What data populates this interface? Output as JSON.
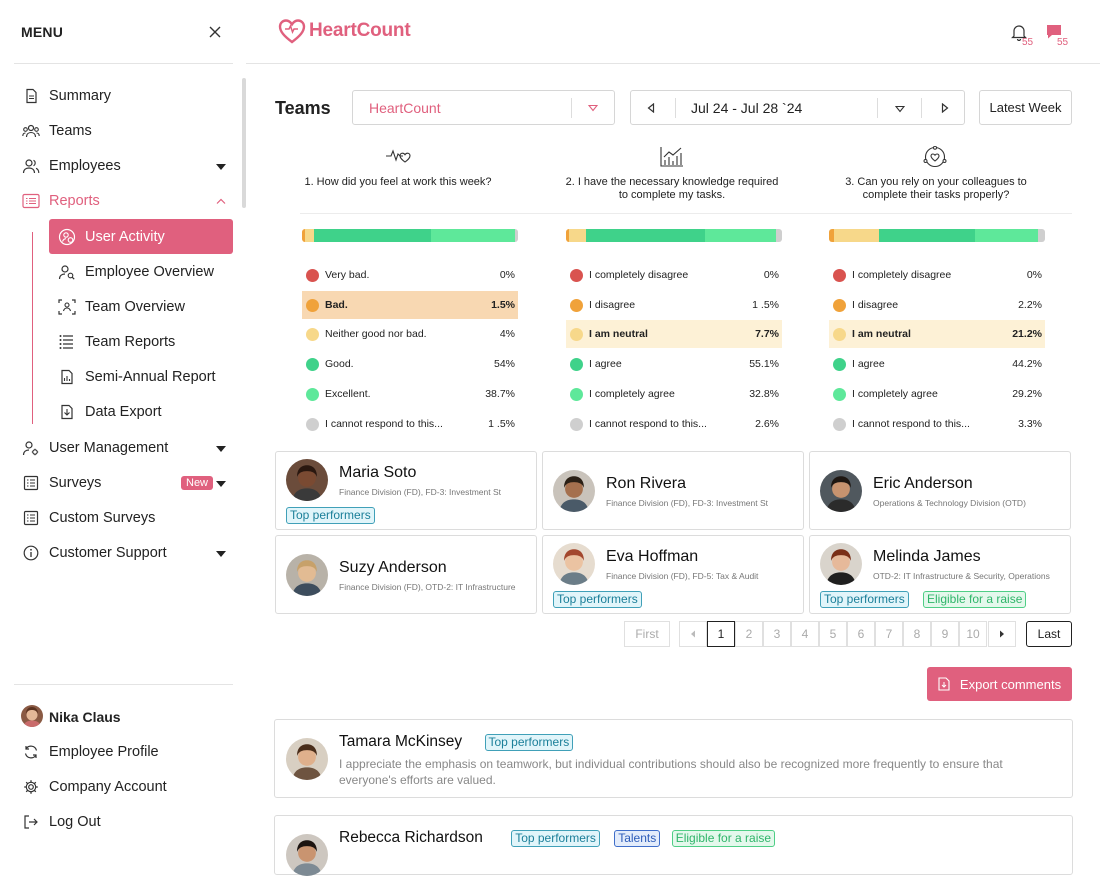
{
  "sidebar": {
    "menu_title": "MENU",
    "items": [
      {
        "label": "Summary"
      },
      {
        "label": "Teams"
      },
      {
        "label": "Employees"
      },
      {
        "label": "Reports"
      },
      {
        "label": "User Management"
      },
      {
        "label": "Surveys",
        "badge": "New"
      },
      {
        "label": "Custom Surveys"
      },
      {
        "label": "Customer Support"
      }
    ],
    "report_items": [
      {
        "label": "User Activity"
      },
      {
        "label": "Employee Overview"
      },
      {
        "label": "Team Overview"
      },
      {
        "label": "Team Reports"
      },
      {
        "label": "Semi-Annual Report"
      },
      {
        "label": "Data Export"
      }
    ],
    "user": {
      "name": "Nika Claus",
      "links": [
        "Employee Profile",
        "Company Account",
        "Log Out"
      ]
    }
  },
  "header": {
    "logo": "HeartCount",
    "notifications_count": "55",
    "messages_count": "55"
  },
  "filters": {
    "title": "Teams",
    "team_select": "HeartCount",
    "date_range": "Jul 24 - Jul 28 `24",
    "period_button": "Latest Week"
  },
  "questions": [
    {
      "line1": "1. How did you feel at work this week?",
      "line2": "",
      "icon": "heartbeat-icon",
      "bar": [
        1.5,
        4,
        54,
        38.7,
        1.5
      ],
      "answers": [
        {
          "label": "Very bad.",
          "pct": "0%",
          "color": "#d9534f"
        },
        {
          "label": "Bad.",
          "pct": "1.5%",
          "color": "#f0a23a"
        },
        {
          "label": "Neither good nor bad.",
          "pct": "4%",
          "color": "#f7d88a"
        },
        {
          "label": "Good.",
          "pct": "54%",
          "color": "#3fd28a"
        },
        {
          "label": "Excellent.",
          "pct": "38.7%",
          "color": "#5ee89a"
        },
        {
          "label": "I cannot respond to this...",
          "pct": "1 .5%",
          "color": "#cfcfcf"
        }
      ],
      "highlight": 1
    },
    {
      "line1": "2. I have the necessary knowledge required",
      "line2": "to complete my tasks.",
      "icon": "growth-chart-icon",
      "bar": [
        1.5,
        7.7,
        55.1,
        32.8,
        2.6
      ],
      "answers": [
        {
          "label": "I completely disagree",
          "pct": "0%",
          "color": "#d9534f"
        },
        {
          "label": "I disagree",
          "pct": "1 .5%",
          "color": "#f0a23a"
        },
        {
          "label": "I am neutral",
          "pct": "7.7%",
          "color": "#f7d88a"
        },
        {
          "label": "I agree",
          "pct": "55.1%",
          "color": "#3fd28a"
        },
        {
          "label": "I completely agree",
          "pct": "32.8%",
          "color": "#5ee89a"
        },
        {
          "label": "I cannot respond to this...",
          "pct": "2.6%",
          "color": "#cfcfcf"
        }
      ],
      "highlight": 2
    },
    {
      "line1": "3. Can you rely on your colleagues to",
      "line2": "complete their tasks properly?",
      "icon": "team-heart-icon",
      "bar": [
        2.2,
        21.2,
        44.2,
        29.2,
        3.3
      ],
      "answers": [
        {
          "label": "I completely disagree",
          "pct": "0%",
          "color": "#d9534f"
        },
        {
          "label": "I disagree",
          "pct": "2.2%",
          "color": "#f0a23a"
        },
        {
          "label": "I am neutral",
          "pct": "21.2%",
          "color": "#f7d88a"
        },
        {
          "label": "I agree",
          "pct": "44.2%",
          "color": "#3fd28a"
        },
        {
          "label": "I completely agree",
          "pct": "29.2%",
          "color": "#5ee89a"
        },
        {
          "label": "I cannot respond to this...",
          "pct": "3.3%",
          "color": "#cfcfcf"
        }
      ],
      "highlight": 2
    }
  ],
  "employees": [
    {
      "name": "Maria Soto",
      "dept": "Finance Division (FD), FD-3: Investment St",
      "tags": [
        "Top performers"
      ]
    },
    {
      "name": "Ron Rivera",
      "dept": "Finance Division (FD), FD-3: Investment St",
      "tags": []
    },
    {
      "name": "Eric Anderson",
      "dept": "Operations & Technology Division (OTD)",
      "tags": []
    },
    {
      "name": "Suzy Anderson",
      "dept": "Finance Division (FD), OTD-2: IT Infrastructure",
      "tags": []
    },
    {
      "name": "Eva Hoffman",
      "dept": "Finance Division (FD), FD-5: Tax & Audit",
      "tags": [
        "Top performers"
      ]
    },
    {
      "name": "Melinda James",
      "dept": "OTD-2: IT Infrastructure & Security, Operations",
      "tags": [
        "Top performers",
        "Eligible for a raise"
      ]
    }
  ],
  "pagination": {
    "first": "First",
    "pages": [
      "1",
      "2",
      "3",
      "4",
      "5",
      "6",
      "7",
      "8",
      "9",
      "10"
    ],
    "current": "1",
    "last": "Last"
  },
  "export_label": "Export comments",
  "comments": [
    {
      "name": "Tamara McKinsey",
      "tags": [
        "Top performers"
      ],
      "text_line1": "I appreciate the emphasis on teamwork, but individual contributions should also be recognized more frequently to ensure that",
      "text_line2": "everyone's efforts are valued."
    },
    {
      "name": "Rebecca Richardson",
      "tags": [
        "Top performers",
        "Talents",
        "Eligible for a raise"
      ]
    }
  ],
  "colors": {
    "accent": "#e0607e",
    "very_bad": "#d9534f",
    "bad": "#f0a23a",
    "neutral": "#f7d88a",
    "good": "#3fd28a",
    "excellent": "#5ee89a",
    "no_answer": "#cfcfcf"
  }
}
